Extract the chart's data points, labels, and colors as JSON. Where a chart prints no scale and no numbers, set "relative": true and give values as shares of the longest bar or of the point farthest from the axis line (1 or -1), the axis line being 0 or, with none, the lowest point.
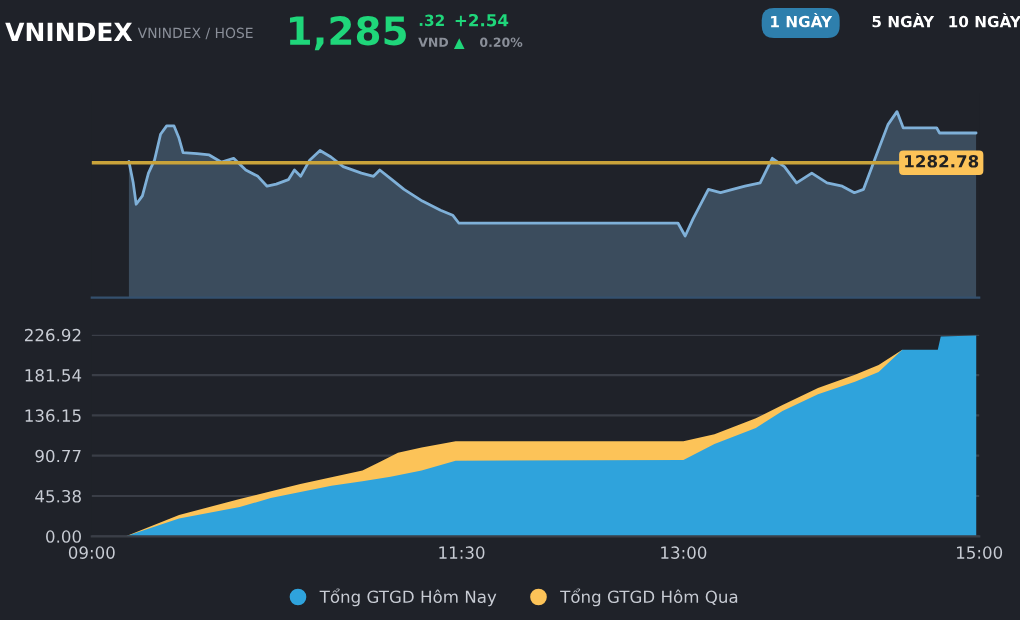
{
  "chart_data": [
    {
      "type": "area",
      "title": "VNINDEX",
      "subtitle": "VNINDEX / HOSE",
      "annotations": [
        "1,285",
        ".32",
        "VND",
        "+2.54",
        "▲",
        "0.20%",
        "1 NGÀY",
        "5 NGÀY",
        "10 NGÀY",
        "1282.78"
      ],
      "relative": true,
      "tick_labels": false,
      "grid": false,
      "line_style": "solid",
      "xlim": [
        9,
        15
      ],
      "series": [
        {
          "color": "#7fb0d8",
          "x": [
            9.251,
            9.28,
            9.3,
            9.342,
            9.383,
            9.424,
            9.465,
            9.506,
            9.556,
            9.588,
            9.617,
            9.712,
            9.794,
            9.877,
            9.959,
            10.041,
            10.123,
            10.185,
            10.247,
            10.329,
            10.37,
            10.412,
            10.473,
            10.543,
            10.617,
            10.7,
            10.823,
            10.905,
            10.947,
            11.029,
            11.111,
            11.235,
            11.358,
            11.44,
            11.481,
            12.963,
            13.012,
            13.066,
            13.169,
            13.251,
            13.333,
            13.416,
            13.519,
            13.601,
            13.683,
            13.765,
            13.868,
            13.971,
            14.074,
            14.156,
            14.218,
            14.3,
            14.383,
            14.444,
            14.486,
            14.712,
            14.732,
            14.979
          ],
          "values": [
            0.732,
            0.617,
            0.502,
            0.547,
            0.669,
            0.739,
            0.878,
            0.923,
            0.923,
            0.861,
            0.78,
            0.774,
            0.767,
            0.728,
            0.749,
            0.686,
            0.652,
            0.599,
            0.61,
            0.634,
            0.686,
            0.652,
            0.739,
            0.791,
            0.756,
            0.704,
            0.669,
            0.652,
            0.686,
            0.634,
            0.582,
            0.519,
            0.47,
            0.443,
            0.401,
            0.401,
            0.331,
            0.425,
            0.582,
            0.564,
            0.582,
            0.599,
            0.617,
            0.749,
            0.704,
            0.617,
            0.669,
            0.617,
            0.599,
            0.564,
            0.582,
            0.756,
            0.93,
            1,
            0.913,
            0.913,
            0.885,
            0.885
          ]
        }
      ],
      "ref_lines": [
        {
          "axis": "y",
          "value": 0.725,
          "color": "#c9a33a"
        }
      ]
    },
    {
      "type": "area",
      "grid": "y",
      "legend": "bottom",
      "xlim": [
        9,
        15
      ],
      "xticks": [
        {
          "value": 9,
          "label": "09:00"
        },
        {
          "value": 11.5,
          "label": "11:30"
        },
        {
          "value": 13,
          "label": "13:00"
        },
        {
          "value": 15,
          "label": "15:00"
        }
      ],
      "ylim": [
        0,
        226.92
      ],
      "yticks": [
        {
          "value": 0,
          "label": "0.00"
        },
        {
          "value": 45.38,
          "label": "45.38"
        },
        {
          "value": 90.77,
          "label": "90.77"
        },
        {
          "value": 136.15,
          "label": "136.15"
        },
        {
          "value": 181.54,
          "label": "181.54"
        },
        {
          "value": 226.92,
          "label": "226.92"
        }
      ],
      "series": [
        {
          "name": "Tổng GTGD Hôm Nay",
          "color": "#2fa3dc",
          "x": [
            9,
            9.23,
            9.59,
            10.0,
            10.21,
            10.41,
            10.62,
            10.83,
            11.02,
            11.23,
            11.46,
            13.0,
            13.21,
            13.49,
            13.67,
            13.91,
            14.16,
            14.32,
            14.48,
            14.72,
            14.74,
            14.98
          ],
          "values": [
            0,
            0,
            20,
            33,
            43,
            50,
            57,
            62,
            67,
            74,
            85,
            86,
            104,
            122,
            141,
            160,
            174,
            185,
            210,
            210,
            225,
            226
          ]
        },
        {
          "name": "Tổng GTGD Hôm Qua",
          "color": "#fcc358",
          "x": [
            9,
            9.23,
            9.59,
            10.0,
            10.41,
            10.83,
            10.95,
            11.07,
            11.23,
            11.46,
            13.0,
            13.21,
            13.49,
            13.67,
            13.91,
            14.16,
            14.32,
            14.48
          ],
          "values": [
            0,
            0,
            24,
            42,
            59,
            74,
            84,
            94,
            100,
            107,
            107,
            115,
            133,
            148,
            167,
            182,
            193,
            210
          ]
        }
      ]
    }
  ]
}
